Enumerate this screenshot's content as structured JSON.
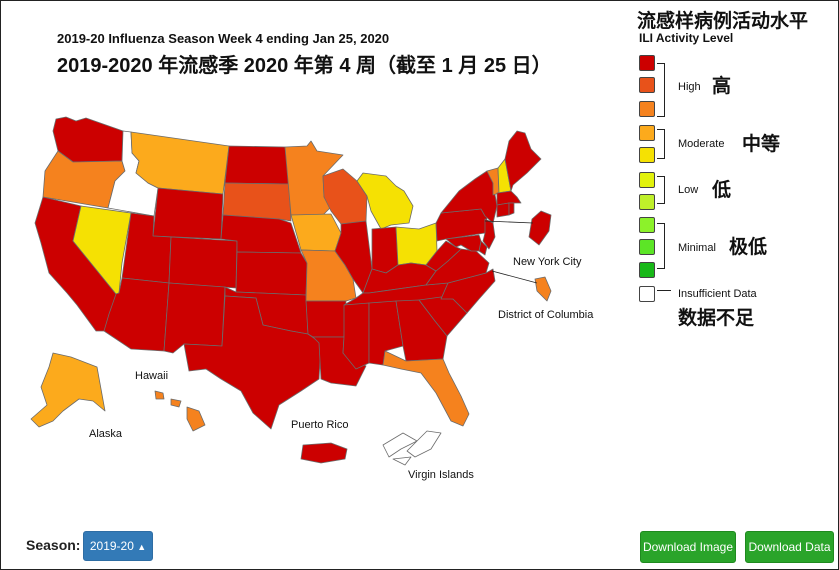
{
  "title_en": "2019-20 Influenza Season Week 4 ending Jan 25, 2020",
  "title_zh": "2019-2020 年流感季 2020 年第 4 周（截至 1 月 25 日）",
  "legend": {
    "title_zh": "流感样病例活动水平",
    "title_en": "ILI Activity Level",
    "levels": [
      {
        "level": 10,
        "color": "#cc0000"
      },
      {
        "level": 9,
        "color": "#e8521a"
      },
      {
        "level": 8,
        "color": "#f5821e"
      },
      {
        "level": 7,
        "color": "#fcaa1c"
      },
      {
        "level": 6,
        "color": "#f5e103"
      },
      {
        "level": 5,
        "color": "#e2f20c"
      },
      {
        "level": 4,
        "color": "#bff02a"
      },
      {
        "level": 3,
        "color": "#8cf22a"
      },
      {
        "level": 2,
        "color": "#5ce526"
      },
      {
        "level": 1,
        "color": "#18b818"
      },
      {
        "level": 0,
        "color": "#ffffff"
      }
    ],
    "groups": {
      "high": {
        "en": "High",
        "zh": "高"
      },
      "moderate": {
        "en": "Moderate",
        "zh": "中等"
      },
      "low": {
        "en": "Low",
        "zh": "低"
      },
      "minimal": {
        "en": "Minimal",
        "zh": "极低"
      },
      "insufficient": {
        "en": "Insufficient Data",
        "zh": "数据不足"
      }
    }
  },
  "map_labels": {
    "new_york_city": "New York City",
    "district_of_columbia": "District of Columbia",
    "hawaii": "Hawaii",
    "alaska": "Alaska",
    "puerto_rico": "Puerto Rico",
    "virgin_islands": "Virgin Islands"
  },
  "controls": {
    "season_label": "Season:",
    "season_value": "2019-20",
    "download_image": "Download Image",
    "download_data": "Download Data"
  },
  "colors": {
    "high": "#cc0000",
    "orange": "#f5821e",
    "dark_orange": "#e8521a",
    "moderate": "#fcaa1c",
    "yellow": "#f5e103",
    "insufficient": "#ffffff",
    "button_blue": "#337ab7",
    "button_green": "#2aa42a"
  },
  "states": [
    {
      "name": "Washington",
      "level": 10
    },
    {
      "name": "Oregon",
      "level": 8
    },
    {
      "name": "California",
      "level": 10
    },
    {
      "name": "Idaho",
      "level": 0
    },
    {
      "name": "Nevada",
      "level": 6
    },
    {
      "name": "Montana",
      "level": 7
    },
    {
      "name": "Wyoming",
      "level": 10
    },
    {
      "name": "Utah",
      "level": 10
    },
    {
      "name": "Arizona",
      "level": 10
    },
    {
      "name": "Colorado",
      "level": 10
    },
    {
      "name": "New Mexico",
      "level": 10
    },
    {
      "name": "North Dakota",
      "level": 10
    },
    {
      "name": "South Dakota",
      "level": 9
    },
    {
      "name": "Nebraska",
      "level": 10
    },
    {
      "name": "Kansas",
      "level": 10
    },
    {
      "name": "Oklahoma",
      "level": 10
    },
    {
      "name": "Texas",
      "level": 10
    },
    {
      "name": "Minnesota",
      "level": 8
    },
    {
      "name": "Iowa",
      "level": 7
    },
    {
      "name": "Missouri",
      "level": 8
    },
    {
      "name": "Arkansas",
      "level": 10
    },
    {
      "name": "Louisiana",
      "level": 10
    },
    {
      "name": "Wisconsin",
      "level": 9
    },
    {
      "name": "Illinois",
      "level": 10
    },
    {
      "name": "Michigan",
      "level": 6
    },
    {
      "name": "Indiana",
      "level": 10
    },
    {
      "name": "Ohio",
      "level": 6
    },
    {
      "name": "Kentucky",
      "level": 10
    },
    {
      "name": "Tennessee",
      "level": 10
    },
    {
      "name": "Mississippi",
      "level": 10
    },
    {
      "name": "Alabama",
      "level": 10
    },
    {
      "name": "Georgia",
      "level": 10
    },
    {
      "name": "Florida",
      "level": 8
    },
    {
      "name": "South Carolina",
      "level": 10
    },
    {
      "name": "North Carolina",
      "level": 10
    },
    {
      "name": "Virginia",
      "level": 10
    },
    {
      "name": "West Virginia",
      "level": 10
    },
    {
      "name": "Pennsylvania",
      "level": 10
    },
    {
      "name": "New York",
      "level": 10
    },
    {
      "name": "Vermont",
      "level": 8
    },
    {
      "name": "New Hampshire",
      "level": 6
    },
    {
      "name": "Maine",
      "level": 10
    },
    {
      "name": "Massachusetts",
      "level": 10
    },
    {
      "name": "Connecticut",
      "level": 10
    },
    {
      "name": "Rhode Island",
      "level": 10
    },
    {
      "name": "New Jersey",
      "level": 10
    },
    {
      "name": "Delaware",
      "level": 10
    },
    {
      "name": "Maryland",
      "level": 10
    },
    {
      "name": "Alaska",
      "level": 7
    },
    {
      "name": "Hawaii",
      "level": 8
    },
    {
      "name": "Puerto Rico",
      "level": 10
    },
    {
      "name": "Virgin Islands",
      "level": 0
    },
    {
      "name": "New York City",
      "level": 10
    },
    {
      "name": "District of Columbia",
      "level": 8
    }
  ]
}
